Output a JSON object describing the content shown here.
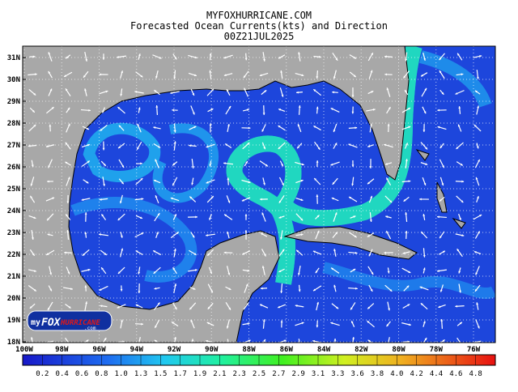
{
  "header": {
    "site": "MYFOXHURRICANE.COM",
    "title": "Forecasted Ocean Currents(kts) and Direction",
    "time": "00Z21JUL2025"
  },
  "map": {
    "lat_labels": [
      "31N",
      "30N",
      "29N",
      "28N",
      "27N",
      "26N",
      "25N",
      "24N",
      "23N",
      "22N",
      "21N",
      "20N",
      "19N",
      "18N"
    ],
    "lon_labels": [
      "100W",
      "98W",
      "96W",
      "94W",
      "92W",
      "90W",
      "88W",
      "86W",
      "84W",
      "82W",
      "80W",
      "78W",
      "76W"
    ]
  },
  "colorbar": {
    "labels": [
      "0.2",
      "0.4",
      "0.6",
      "0.8",
      "1.0",
      "1.3",
      "1.5",
      "1.7",
      "1.9",
      "2.1",
      "2.3",
      "2.5",
      "2.7",
      "2.9",
      "3.1",
      "3.3",
      "3.6",
      "3.8",
      "4.0",
      "4.2",
      "4.4",
      "4.6",
      "4.8"
    ]
  },
  "logo": {
    "prefix": "my",
    "brand": "FOX",
    "name": "HURRICANE",
    "suffix": ".com"
  }
}
